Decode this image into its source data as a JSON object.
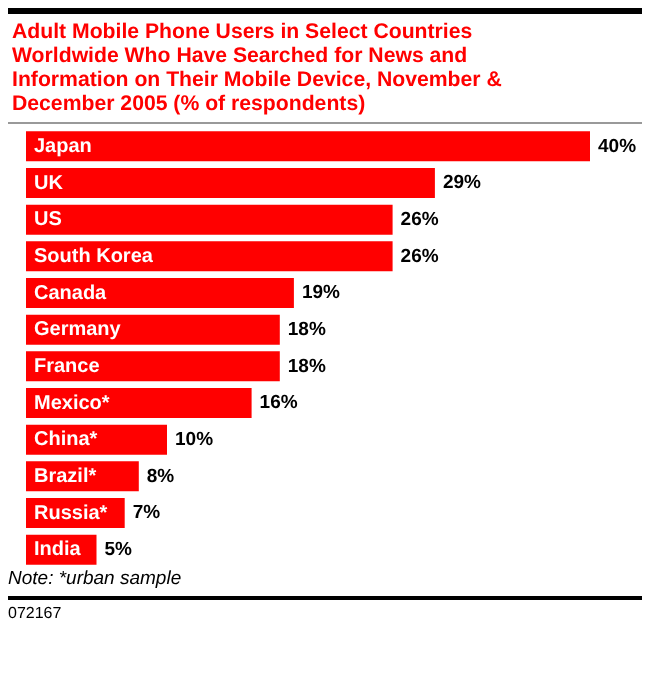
{
  "chart_data": {
    "type": "bar",
    "orientation": "horizontal",
    "title": "Adult Mobile Phone Users in Select Countries Worldwide Who Have Searched for News and Information on Their Mobile Device, November & December 2005 (% of respondents)",
    "categories": [
      "Japan",
      "UK",
      "US",
      "South Korea",
      "Canada",
      "Germany",
      "France",
      "Mexico*",
      "China*",
      "Brazil*",
      "Russia*",
      "India"
    ],
    "values": [
      40,
      29,
      26,
      26,
      19,
      18,
      18,
      16,
      10,
      8,
      7,
      5
    ],
    "value_labels": [
      "40%",
      "29%",
      "26%",
      "26%",
      "19%",
      "18%",
      "18%",
      "16%",
      "10%",
      "8%",
      "7%",
      "5%"
    ],
    "color": "#ff0000",
    "grid": false,
    "legend": false,
    "annotations": [
      "Note: *urban sample",
      "072167"
    ]
  }
}
